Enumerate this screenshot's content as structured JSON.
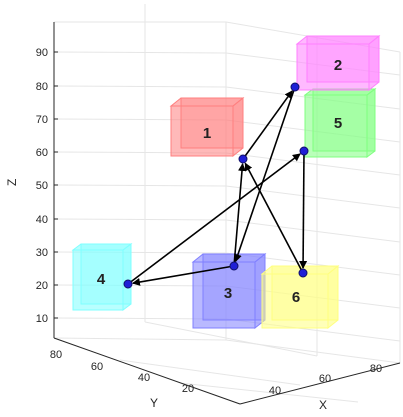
{
  "chart_data": {
    "type": "3d-box-path",
    "xlabel": "X",
    "ylabel": "Y",
    "zlabel": "Z",
    "x_ticks": [
      "40",
      "60",
      "80"
    ],
    "y_ticks": [
      "80",
      "60",
      "40",
      "20"
    ],
    "z_ticks": [
      "10",
      "20",
      "30",
      "40",
      "50",
      "60",
      "70",
      "80",
      "90"
    ],
    "grid": true,
    "boxes": [
      {
        "label": "1",
        "color": "#ff7f7f"
      },
      {
        "label": "2",
        "color": "#ff80ff"
      },
      {
        "label": "3",
        "color": "#8080ff"
      },
      {
        "label": "4",
        "color": "#7fffff"
      },
      {
        "label": "5",
        "color": "#80ff80"
      },
      {
        "label": "6",
        "color": "#ffff80"
      }
    ],
    "path_color": "#000000",
    "node_color": "#1f1fd6"
  }
}
